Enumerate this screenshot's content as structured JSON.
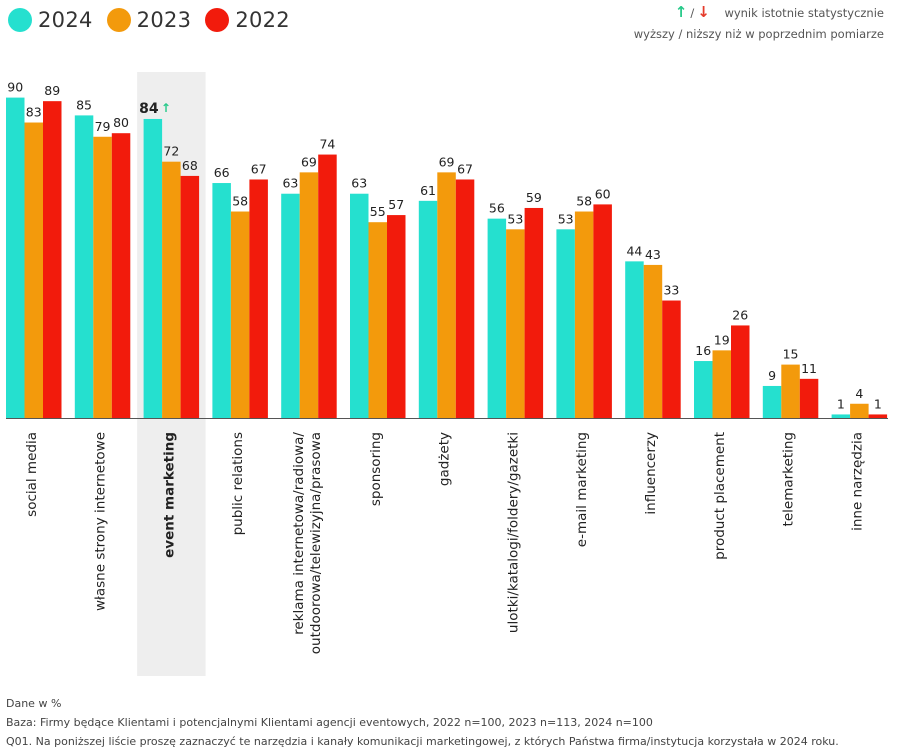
{
  "legend": [
    {
      "label": "2024",
      "color": "#25e0cf"
    },
    {
      "label": "2023",
      "color": "#f39a0c"
    },
    {
      "label": "2022",
      "color": "#f21b0c"
    }
  ],
  "significance_note": {
    "line1_text": "wynik istotnie statystycznie",
    "line2_text": "wyższy / niższy niż w poprzednim pomiarze",
    "up_icon": "arrow-up-icon",
    "down_icon": "arrow-down-icon",
    "up_color": "#27c98a",
    "down_color": "#e53b2b",
    "separator": "/"
  },
  "chart_data": {
    "type": "bar",
    "ylim": [
      0,
      100
    ],
    "grid": false,
    "legend_position": "top-left",
    "categories": [
      "social media",
      "własne strony internetowe",
      "event marketing",
      "public relations",
      "reklama internetowa/radiowa/ outdoorowa/telewizyjna/prasowa",
      "sponsoring",
      "gadżety",
      "ulotki/katalogi/foldery/gazetki",
      "e-mail marketing",
      "influencerzy",
      "product placement",
      "telemarketing",
      "inne narzędzia"
    ],
    "series": [
      {
        "name": "2024",
        "color": "#25e0cf",
        "values": [
          90,
          85,
          84,
          66,
          63,
          63,
          61,
          56,
          53,
          44,
          16,
          9,
          1
        ]
      },
      {
        "name": "2023",
        "color": "#f39a0c",
        "values": [
          83,
          79,
          72,
          58,
          69,
          55,
          69,
          53,
          58,
          43,
          19,
          15,
          4
        ]
      },
      {
        "name": "2022",
        "color": "#f21b0c",
        "values": [
          89,
          80,
          68,
          67,
          74,
          57,
          67,
          59,
          60,
          33,
          26,
          11,
          1
        ]
      }
    ],
    "highlighted_category": "event marketing",
    "highlight_color": "#eeeeee",
    "significant_up": [
      {
        "category": "event marketing",
        "series": "2024"
      }
    ]
  },
  "footer": {
    "line1": "Dane w %",
    "line2": "Baza: Firmy będące Klientami i potencjalnymi Klientami agencji eventowych, 2022 n=100, 2023 n=113, 2024 n=100",
    "line3": "Q01. Na poniższej liście proszę zaznaczyć te narzędzia i kanały komunikacji marketingowej, z których Państwa firma/instytucja korzystała w 2024 roku."
  }
}
